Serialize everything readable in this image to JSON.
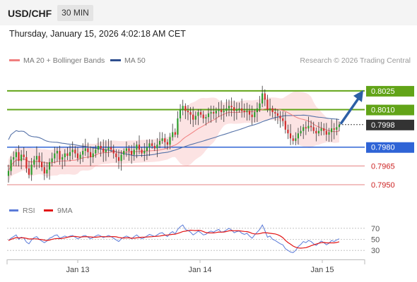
{
  "header": {
    "symbol": "USD/CHF",
    "timeframe": "30 MIN",
    "timestamp": "Thursday, January 15, 2026 4:02:18 AM CET"
  },
  "legend": {
    "ma20_label": "MA 20 + Bollinger Bands",
    "ma50_label": "MA 50",
    "credit": "Research © 2026 Trading Central"
  },
  "colors": {
    "bull": "#2c9d2c",
    "bear": "#cf2b2b",
    "ma20": "#f07f7f",
    "ma50": "#5572a8",
    "bands": "#fbdede",
    "green_level": "#62a418",
    "blue_level": "#2f64d6",
    "red_level": "#e06a6a",
    "arrow": "#2d5fa6",
    "rsi": "#5b7bd8",
    "rsi_ma": "#e21515"
  },
  "rsi_legend": {
    "rsi_label": "RSI",
    "ma_label": "9MA"
  },
  "chart_data": {
    "type": "candlestick",
    "x_ticks": [
      "Jan 13",
      "Jan 14",
      "Jan 15"
    ],
    "ylim": [
      0.7937,
      0.8043
    ],
    "current_price": "0.7998",
    "levels": [
      {
        "label": "0.8025",
        "value": 0.8025,
        "kind": "resistance",
        "color": "#62a418"
      },
      {
        "label": "0.8010",
        "value": 0.801,
        "kind": "resistance",
        "color": "#62a418"
      },
      {
        "label": "0.7998",
        "value": 0.7998,
        "kind": "current",
        "color": "#333333"
      },
      {
        "label": "0.7980",
        "value": 0.798,
        "kind": "pivot",
        "color": "#2f64d6"
      },
      {
        "label": "0.7965",
        "value": 0.7965,
        "kind": "support",
        "color": "#e06a6a"
      },
      {
        "label": "0.7950",
        "value": 0.795,
        "kind": "support",
        "color": "#e06a6a"
      }
    ],
    "target_arrow": {
      "from": 0.7998,
      "to": 0.8025
    },
    "rsi_ticks": [
      "70",
      "50",
      "30"
    ],
    "rsi_range": [
      0,
      100
    ],
    "closes": [
      0.7961,
      0.797,
      0.7972,
      0.7976,
      0.7969,
      0.7974,
      0.7972,
      0.7963,
      0.7958,
      0.7966,
      0.797,
      0.7973,
      0.7968,
      0.7964,
      0.7959,
      0.7962,
      0.7968,
      0.7971,
      0.7975,
      0.7977,
      0.797,
      0.7972,
      0.7975,
      0.7973,
      0.7976,
      0.7978,
      0.7975,
      0.7971,
      0.7974,
      0.7977,
      0.7979,
      0.7976,
      0.7972,
      0.7975,
      0.7978,
      0.7981,
      0.7979,
      0.7976,
      0.7978,
      0.798,
      0.7978,
      0.7975,
      0.7972,
      0.7969,
      0.7974,
      0.7977,
      0.7979,
      0.7977,
      0.7974,
      0.7978,
      0.7982,
      0.7978,
      0.7975,
      0.7977,
      0.798,
      0.7983,
      0.7981,
      0.7979,
      0.7982,
      0.7985,
      0.7987,
      0.7984,
      0.7982,
      0.7988,
      0.7992,
      0.799,
      0.8003,
      0.801,
      0.8013,
      0.8009,
      0.8008,
      0.8006,
      0.8002,
      0.8005,
      0.8008,
      0.8006,
      0.8003,
      0.8004,
      0.8007,
      0.8008,
      0.8007,
      0.8009,
      0.801,
      0.8008,
      0.8009,
      0.8011,
      0.8013,
      0.8012,
      0.8009,
      0.801,
      0.8011,
      0.8009,
      0.8008,
      0.8009,
      0.8006,
      0.8004,
      0.8008,
      0.8011,
      0.8015,
      0.8023,
      0.8018,
      0.801,
      0.8011,
      0.8008,
      0.8007,
      0.8005,
      0.8003,
      0.8001,
      0.7994,
      0.7991,
      0.7987,
      0.7985,
      0.7987,
      0.7991,
      0.7993,
      0.7996,
      0.7995,
      0.7997,
      0.7996,
      0.7993,
      0.7991,
      0.7993,
      0.7995,
      0.7993,
      0.799,
      0.7992,
      0.7995,
      0.7994,
      0.7996,
      0.7998
    ],
    "rsi": [
      48,
      52,
      55,
      58,
      50,
      54,
      52,
      45,
      42,
      49,
      53,
      55,
      50,
      47,
      44,
      47,
      52,
      54,
      57,
      58,
      52,
      54,
      56,
      54,
      56,
      57,
      54,
      51,
      53,
      56,
      57,
      54,
      51,
      53,
      56,
      58,
      56,
      53,
      55,
      57,
      55,
      52,
      49,
      46,
      51,
      54,
      56,
      54,
      51,
      55,
      58,
      54,
      51,
      53,
      56,
      59,
      57,
      55,
      58,
      61,
      62,
      58,
      55,
      61,
      64,
      60,
      68,
      73,
      76,
      68,
      66,
      63,
      58,
      61,
      65,
      62,
      58,
      59,
      63,
      65,
      63,
      66,
      68,
      63,
      64,
      67,
      70,
      67,
      62,
      64,
      65,
      61,
      59,
      61,
      56,
      52,
      58,
      63,
      68,
      76,
      66,
      54,
      56,
      50,
      48,
      45,
      42,
      40,
      33,
      30,
      27,
      26,
      30,
      37,
      41,
      46,
      44,
      48,
      46,
      42,
      39,
      43,
      47,
      44,
      40,
      43,
      48,
      46,
      49,
      51
    ]
  }
}
